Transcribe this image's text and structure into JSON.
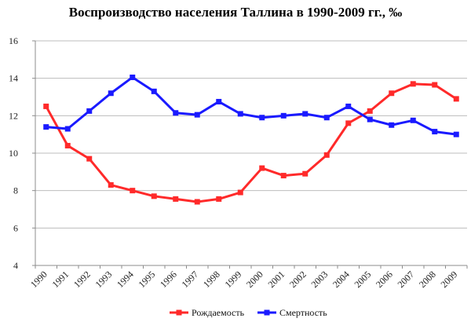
{
  "chart_data": {
    "type": "line",
    "title": "Воспроизводство населения Таллина в 1990-2009 гг., ‰",
    "xlabel": "",
    "ylabel": "",
    "categories": [
      "1990",
      "1991",
      "1992",
      "1993",
      "1994",
      "1995",
      "1996",
      "1997",
      "1998",
      "1999",
      "2000",
      "2001",
      "2002",
      "2003",
      "2004",
      "2005",
      "2006",
      "2007",
      "2008",
      "2009"
    ],
    "ylim": [
      4,
      16
    ],
    "yticks": [
      "4",
      "6",
      "8",
      "10",
      "12",
      "14",
      "16"
    ],
    "grid": true,
    "legend_position": "bottom",
    "series": [
      {
        "name": "Рождаемость",
        "color": "#ff2a2a",
        "values": [
          12.5,
          10.4,
          9.7,
          8.3,
          8.0,
          7.7,
          7.55,
          7.4,
          7.55,
          7.9,
          9.2,
          8.8,
          8.9,
          9.9,
          11.6,
          12.25,
          13.2,
          13.7,
          13.65,
          12.9
        ]
      },
      {
        "name": "Смертность",
        "color": "#1a1aff",
        "values": [
          11.4,
          11.3,
          12.25,
          13.2,
          14.05,
          13.3,
          12.15,
          12.05,
          12.75,
          12.1,
          11.9,
          12.0,
          12.1,
          11.9,
          12.5,
          11.8,
          11.5,
          11.75,
          11.15,
          11.0
        ]
      }
    ]
  }
}
